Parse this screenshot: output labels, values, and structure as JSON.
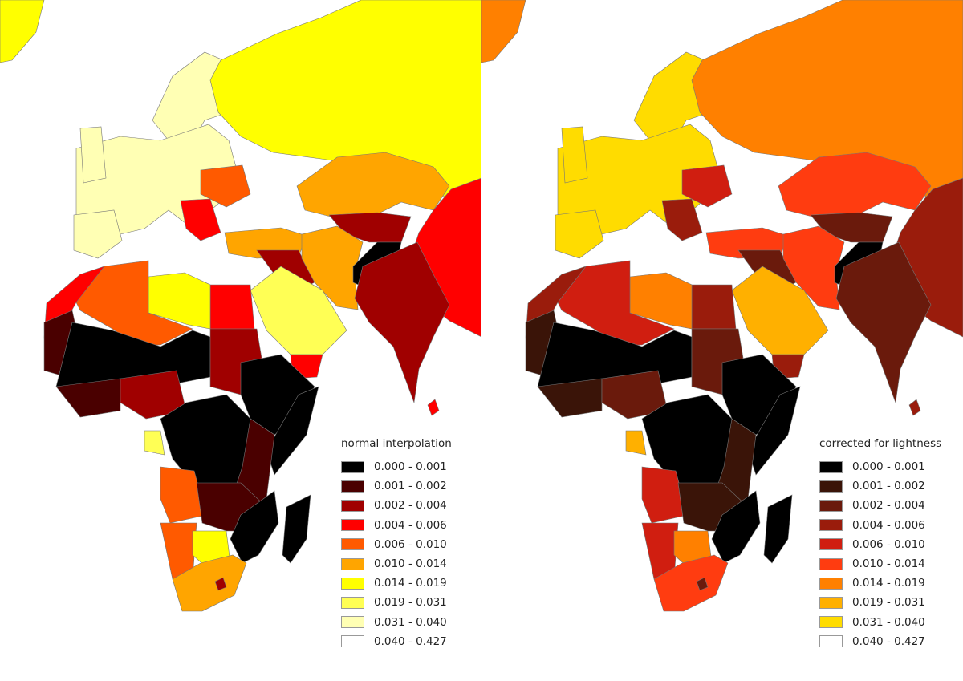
{
  "left": {
    "title": "normal interpolation",
    "classes": [
      {
        "label": "0.000 - 0.001",
        "color": "#000000"
      },
      {
        "label": "0.001 - 0.002",
        "color": "#4a0000"
      },
      {
        "label": "0.002 - 0.004",
        "color": "#a00000"
      },
      {
        "label": "0.004 - 0.006",
        "color": "#ff0000"
      },
      {
        "label": "0.006 - 0.010",
        "color": "#ff5a00"
      },
      {
        "label": "0.010 - 0.014",
        "color": "#ffa500"
      },
      {
        "label": "0.014 - 0.019",
        "color": "#ffff00"
      },
      {
        "label": "0.019 - 0.031",
        "color": "#ffff55"
      },
      {
        "label": "0.031 - 0.040",
        "color": "#ffffb4"
      },
      {
        "label": "0.040 - 0.427",
        "color": "#ffffff"
      }
    ]
  },
  "right": {
    "title": "corrected for lightness",
    "classes": [
      {
        "label": "0.000 - 0.001",
        "color": "#000000"
      },
      {
        "label": "0.001 - 0.002",
        "color": "#3a1408"
      },
      {
        "label": "0.002 - 0.004",
        "color": "#6a1a0c"
      },
      {
        "label": "0.004 - 0.006",
        "color": "#9a1c0c"
      },
      {
        "label": "0.006 - 0.010",
        "color": "#d01e10"
      },
      {
        "label": "0.010 - 0.014",
        "color": "#ff3c10"
      },
      {
        "label": "0.014 - 0.019",
        "color": "#ff8000"
      },
      {
        "label": "0.019 - 0.031",
        "color": "#ffb000"
      },
      {
        "label": "0.031 - 0.040",
        "color": "#ffdc00"
      },
      {
        "label": "0.040 - 0.427",
        "color": "#ffffff"
      }
    ]
  }
}
